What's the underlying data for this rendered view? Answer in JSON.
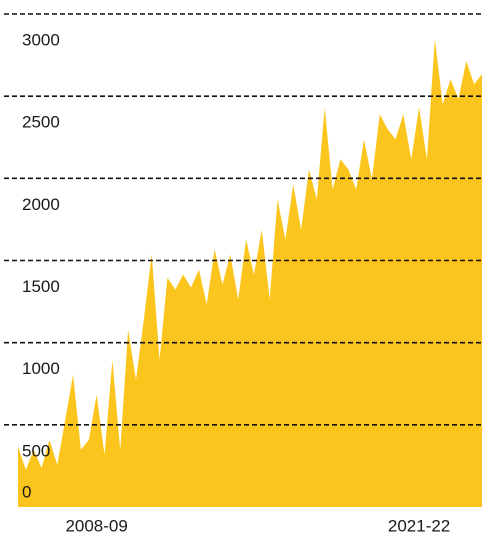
{
  "chart_data": {
    "type": "area",
    "color": "#fcc51e",
    "categories": [
      null,
      null,
      null,
      null,
      null,
      null,
      null,
      null,
      null,
      null,
      "2008-09",
      null,
      null,
      null,
      null,
      null,
      null,
      null,
      null,
      null,
      null,
      null,
      null,
      null,
      null,
      null,
      null,
      null,
      null,
      null,
      null,
      null,
      null,
      null,
      null,
      null,
      null,
      null,
      null,
      null,
      null,
      null,
      null,
      null,
      null,
      null,
      null,
      null,
      null,
      null,
      null,
      "2021-22",
      null,
      null,
      null,
      null,
      null,
      null,
      null,
      null
    ],
    "values": [
      366,
      226,
      348,
      238,
      408,
      256,
      530,
      805,
      348,
      408,
      683,
      317,
      896,
      348,
      1079,
      774,
      1140,
      1537,
      896,
      1396,
      1323,
      1415,
      1335,
      1445,
      1232,
      1567,
      1354,
      1537,
      1262,
      1628,
      1415,
      1689,
      1262,
      1872,
      1628,
      1963,
      1689,
      2055,
      1872,
      2433,
      1933,
      2116,
      2055,
      1933,
      2238,
      1994,
      2390,
      2299,
      2238,
      2390,
      2116,
      2433,
      2116,
      2848,
      2451,
      2604,
      2482,
      2713,
      2573,
      2634
    ],
    "ylim": [
      0,
      3000
    ],
    "yticks": [
      0,
      500,
      1000,
      1500,
      2000,
      2500,
      3000
    ],
    "grid": true
  }
}
